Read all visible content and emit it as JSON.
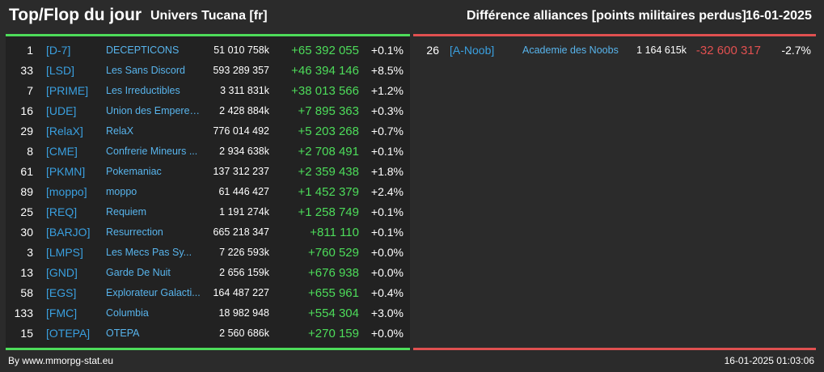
{
  "header": {
    "title": "Top/Flop du jour",
    "universe": "Univers Tucana [fr]",
    "subtitle": "Différence alliances [points militaires perdus]",
    "date": "16-01-2025"
  },
  "colors": {
    "positive": "#4ddc5a",
    "negative": "#e05050",
    "tag": "#3aa0e0",
    "background": "#2b2b2b"
  },
  "top": [
    {
      "rank": "1",
      "tag": "[D-7]",
      "name": "DECEPTICONS",
      "points": "51 010 758k",
      "diff": "+65 392 055",
      "pct": "+0.1%"
    },
    {
      "rank": "33",
      "tag": "[LSD]",
      "name": "Les Sans Discord",
      "points": "593 289 357",
      "diff": "+46 394 146",
      "pct": "+8.5%"
    },
    {
      "rank": "7",
      "tag": "[PRIME]",
      "name": "Les Irreductibles",
      "points": "3 311 831k",
      "diff": "+38 013 566",
      "pct": "+1.2%"
    },
    {
      "rank": "16",
      "tag": "[UDE]",
      "name": "Union des Empereur...",
      "points": "2 428 884k",
      "diff": "+7 895 363",
      "pct": "+0.3%"
    },
    {
      "rank": "29",
      "tag": "[RelaX]",
      "name": "RelaX",
      "points": "776 014 492",
      "diff": "+5 203 268",
      "pct": "+0.7%"
    },
    {
      "rank": "8",
      "tag": "[CME]",
      "name": "Confrerie Mineurs ...",
      "points": "2 934 638k",
      "diff": "+2 708 491",
      "pct": "+0.1%"
    },
    {
      "rank": "61",
      "tag": "[PKMN]",
      "name": "Pokemaniac",
      "points": "137 312 237",
      "diff": "+2 359 438",
      "pct": "+1.8%"
    },
    {
      "rank": "89",
      "tag": "[moppo]",
      "name": "moppo",
      "points": "61 446 427",
      "diff": "+1 452 379",
      "pct": "+2.4%"
    },
    {
      "rank": "25",
      "tag": "[REQ]",
      "name": "Requiem",
      "points": "1 191 274k",
      "diff": "+1 258 749",
      "pct": "+0.1%"
    },
    {
      "rank": "30",
      "tag": "[BARJO]",
      "name": "Resurrection",
      "points": "665 218 347",
      "diff": "+811 110",
      "pct": "+0.1%"
    },
    {
      "rank": "3",
      "tag": "[LMPS]",
      "name": "Les Mecs Pas Sy...",
      "points": "7 226 593k",
      "diff": "+760 529",
      "pct": "+0.0%"
    },
    {
      "rank": "13",
      "tag": "[GND]",
      "name": "Garde De Nuit",
      "points": "2 656 159k",
      "diff": "+676 938",
      "pct": "+0.0%"
    },
    {
      "rank": "58",
      "tag": "[EGS]",
      "name": "Explorateur Galacti...",
      "points": "164 487 227",
      "diff": "+655 961",
      "pct": "+0.4%"
    },
    {
      "rank": "133",
      "tag": "[FMC]",
      "name": "Columbia",
      "points": "18 982 948",
      "diff": "+554 304",
      "pct": "+3.0%"
    },
    {
      "rank": "15",
      "tag": "[OTEPA]",
      "name": "OTEPA",
      "points": "2 560 686k",
      "diff": "+270 159",
      "pct": "+0.0%"
    }
  ],
  "flop": [
    {
      "rank": "26",
      "tag": "[A-Noob]",
      "name": "Academie des Noobs",
      "points": "1 164 615k",
      "diff": "-32 600 317",
      "pct": "-2.7%"
    }
  ],
  "footer": {
    "source": "By www.mmorpg-stat.eu",
    "timestamp": "16-01-2025 01:03:06"
  }
}
